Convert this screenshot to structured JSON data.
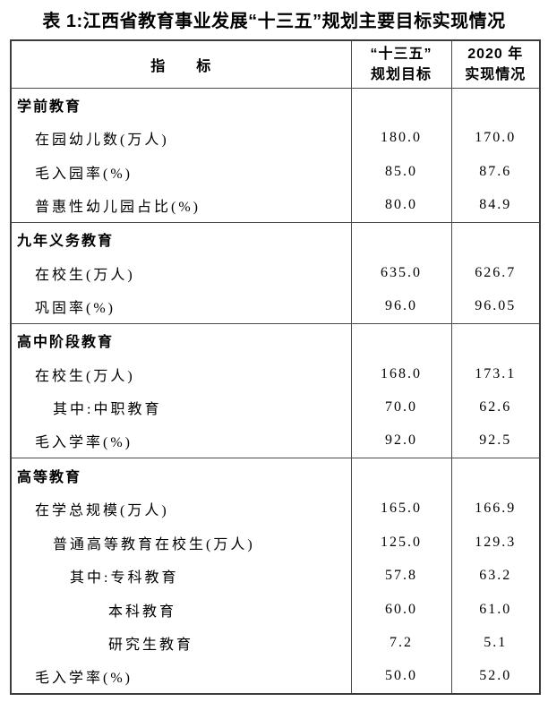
{
  "page": {
    "title": "表 1:江西省教育事业发展“十三五”规划主要目标实现情况"
  },
  "colors": {
    "text": "#000000",
    "border": "#4a4a4a",
    "background": "#ffffff"
  },
  "table": {
    "header": {
      "indicator": "指　　标",
      "target_line1": "“十三五”",
      "target_line2": "规划目标",
      "actual_line1": "2020 年",
      "actual_line2": "实现情况"
    },
    "sections": [
      {
        "title": "学前教育",
        "rows": [
          {
            "label": "在园幼儿数(万人)",
            "target": "180.0",
            "actual": "170.0"
          },
          {
            "label": "毛入园率(%)",
            "target": "85.0",
            "actual": "87.6"
          },
          {
            "label": "普惠性幼儿园占比(%)",
            "target": "80.0",
            "actual": "84.9"
          }
        ]
      },
      {
        "title": "九年义务教育",
        "rows": [
          {
            "label": "在校生(万人)",
            "target": "635.0",
            "actual": "626.7"
          },
          {
            "label": "巩固率(%)",
            "target": "96.0",
            "actual": "96.05"
          }
        ]
      },
      {
        "title": "高中阶段教育",
        "rows": [
          {
            "label": "在校生(万人)",
            "target": "168.0",
            "actual": "173.1"
          },
          {
            "label": "其中:中职教育",
            "target": "70.0",
            "actual": "62.6"
          },
          {
            "label": "毛入学率(%)",
            "target": "92.0",
            "actual": "92.5"
          }
        ]
      },
      {
        "title": "高等教育",
        "rows": [
          {
            "label": "在学总规模(万人)",
            "target": "165.0",
            "actual": "166.9"
          },
          {
            "label": "普通高等教育在校生(万人)",
            "target": "125.0",
            "actual": "129.3"
          },
          {
            "label": "其中:专科教育",
            "target": "57.8",
            "actual": "63.2"
          },
          {
            "label": "本科教育",
            "target": "60.0",
            "actual": "61.0"
          },
          {
            "label": "研究生教育",
            "target": "7.2",
            "actual": "5.1"
          },
          {
            "label": "毛入学率(%)",
            "target": "50.0",
            "actual": "52.0"
          }
        ]
      }
    ]
  }
}
